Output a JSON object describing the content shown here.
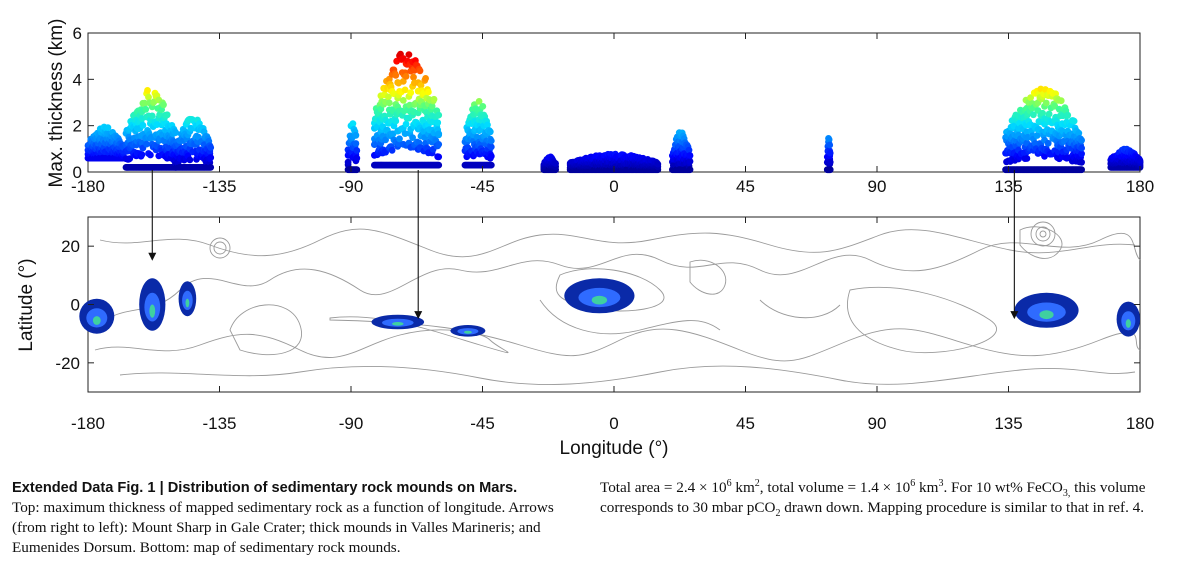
{
  "figure": {
    "top_panel": {
      "ylabel": "Max. thickness (km)",
      "yticks": [
        "0",
        "2",
        "4",
        "6"
      ],
      "xticks": [
        "-180",
        "-135",
        "-90",
        "-45",
        "0",
        "45",
        "90",
        "135",
        "180"
      ]
    },
    "bottom_panel": {
      "ylabel": "Latitude (°)",
      "yticks": [
        "20",
        "0",
        "-20"
      ],
      "xticks": [
        "-180",
        "-135",
        "-90",
        "-45",
        "0",
        "45",
        "90",
        "135",
        "180"
      ],
      "xlabel": "Longitude (°)"
    }
  },
  "chart_data": [
    {
      "type": "scatter",
      "title": "",
      "xlabel": "",
      "ylabel": "Max. thickness (km)",
      "xlim": [
        -180,
        180
      ],
      "ylim": [
        0,
        6
      ],
      "colormap": [
        "#00008b",
        "#0000ff",
        "#0080ff",
        "#00e0ff",
        "#40ff90",
        "#ffff00",
        "#ff8000",
        "#ff0000",
        "#b00000"
      ],
      "clusters": [
        {
          "name": "",
          "x_range": [
            -180,
            -168
          ],
          "y_base": 0.6,
          "y_peak": 2.0
        },
        {
          "name": "",
          "x_range": [
            -167,
            -150
          ],
          "y_base": 0.2,
          "y_peak": 3.6
        },
        {
          "name": "",
          "x_range": [
            -150,
            -138
          ],
          "y_base": 0.2,
          "y_peak": 2.4
        },
        {
          "name": "",
          "x_range": [
            -91,
            -88
          ],
          "y_base": 0.1,
          "y_peak": 2.5
        },
        {
          "name": "",
          "x_range": [
            -82,
            -60
          ],
          "y_base": 0.3,
          "y_peak": 5.3
        },
        {
          "name": "",
          "x_range": [
            -51,
            -42
          ],
          "y_base": 0.3,
          "y_peak": 3.2
        },
        {
          "name": "",
          "x_range": [
            -24,
            -20
          ],
          "y_base": 0.1,
          "y_peak": 0.7
        },
        {
          "name": "",
          "x_range": [
            -15,
            15
          ],
          "y_base": 0.1,
          "y_peak": 0.8
        },
        {
          "name": "",
          "x_range": [
            20,
            26
          ],
          "y_base": 0.1,
          "y_peak": 1.8
        },
        {
          "name": "",
          "x_range": [
            73,
            74
          ],
          "y_base": 0.1,
          "y_peak": 1.7
        },
        {
          "name": "",
          "x_range": [
            134,
            160
          ],
          "y_base": 0.1,
          "y_peak": 3.7
        },
        {
          "name": "",
          "x_range": [
            170,
            180
          ],
          "y_base": 0.2,
          "y_peak": 1.0
        }
      ]
    },
    {
      "type": "map",
      "title": "",
      "xlabel": "Longitude (°)",
      "ylabel": "Latitude (°)",
      "xlim": [
        -180,
        180
      ],
      "ylim": [
        -30,
        30
      ],
      "mounds": [
        {
          "name": "",
          "lon": -177,
          "lat": -4,
          "rx": 6,
          "ry": 6
        },
        {
          "name": "",
          "lon": -158,
          "lat": 0,
          "rx": 4.5,
          "ry": 9
        },
        {
          "name": "",
          "lon": -146,
          "lat": 2,
          "rx": 3,
          "ry": 6
        },
        {
          "name": "",
          "lon": -74,
          "lat": -6,
          "rx": 9,
          "ry": 2.5
        },
        {
          "name": "",
          "lon": -50,
          "lat": -9,
          "rx": 6,
          "ry": 2
        },
        {
          "name": "",
          "lon": -5,
          "lat": 3,
          "rx": 12,
          "ry": 6
        },
        {
          "name": "",
          "lon": 148,
          "lat": -2,
          "rx": 11,
          "ry": 6
        },
        {
          "name": "",
          "lon": 176,
          "lat": -5,
          "rx": 4,
          "ry": 6
        }
      ],
      "arrows": [
        {
          "from_lon": -158,
          "to_lat": 15
        },
        {
          "from_lon": -67,
          "to_lat": -5
        },
        {
          "from_lon": 137,
          "to_lat": -5
        }
      ]
    }
  ],
  "caption": {
    "title": "Extended Data Fig. 1 | Distribution of sedimentary rock mounds on Mars.",
    "left_text": "Top: maximum thickness of mapped sedimentary rock as a function of longitude. Arrows (from right to left): Mount Sharp in Gale Crater; thick mounds in Valles Marineris; and Eumenides Dorsum. Bottom: map of sedimentary rock mounds.",
    "area_prefix": "Total area = 2.4 × 10",
    "area_exp": "6",
    "area_unit": " km",
    "area_unit_exp": "2",
    "volume_prefix": ", total volume = 1.4 × 10",
    "volume_exp": "6",
    "volume_unit": " km",
    "volume_unit_exp": "3",
    "feco3_prefix": ". For 10 wt% FeCO",
    "feco3_sub": "3,",
    "feco3_suffix": " this volume corresponds to 30 mbar pCO",
    "pco2_sub": "2",
    "right_end": " drawn down. Mapping procedure is similar to that in ref. 4."
  }
}
